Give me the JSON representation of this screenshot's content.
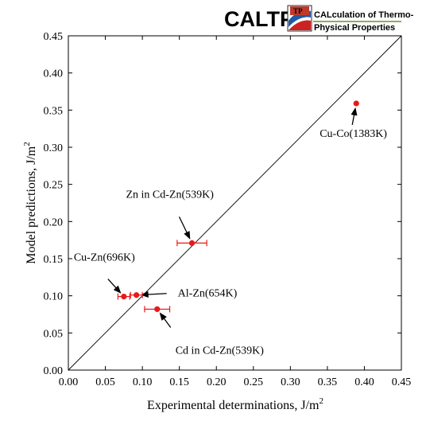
{
  "logo": {
    "wordmark": "CALTPP",
    "badge": "TP",
    "line1": "CALculation of Thermo-",
    "line2": "Physical Properties",
    "colors": {
      "brand": "#6f8f2a",
      "badge": "#c0392b",
      "swoosh_blue": "#1f5aa6",
      "swoosh_red": "#cc2222"
    }
  },
  "chart_data": {
    "type": "scatter",
    "title": "",
    "xlabel": "Experimental determinations, J/m",
    "xlabel_sup": "2",
    "ylabel": "Model predictions, J/m",
    "ylabel_sup": "2",
    "xlim": [
      0,
      0.45
    ],
    "ylim": [
      0,
      0.45
    ],
    "xticks": [
      "0.00",
      "0.05",
      "0.10",
      "0.15",
      "0.20",
      "0.25",
      "0.30",
      "0.35",
      "0.40",
      "0.45"
    ],
    "yticks": [
      "0.00",
      "0.05",
      "0.10",
      "0.15",
      "0.20",
      "0.25",
      "0.30",
      "0.35",
      "0.40",
      "0.45"
    ],
    "grid": false,
    "reference_line": {
      "type": "y=x"
    },
    "point_color": "#e8191a",
    "errorbar_color": "#e8191a",
    "points": [
      {
        "name": "cu-zn",
        "x": 0.075,
        "y": 0.099,
        "xerr": 0.008,
        "label": "Cu-Zn(696K)"
      },
      {
        "name": "al-zn",
        "x": 0.092,
        "y": 0.101,
        "xerr": 0.008,
        "label": "Al-Zn(654K)"
      },
      {
        "name": "cd-in-cd-zn",
        "x": 0.12,
        "y": 0.082,
        "xerr": 0.017,
        "label": "Cd in Cd-Zn(539K)"
      },
      {
        "name": "zn-in-cd-zn",
        "x": 0.167,
        "y": 0.171,
        "xerr": 0.02,
        "label": "Zn in Cd-Zn(539K)"
      },
      {
        "name": "cu-co",
        "x": 0.389,
        "y": 0.359,
        "xerr": 0,
        "label": "Cu-Co(1383K)"
      }
    ]
  }
}
